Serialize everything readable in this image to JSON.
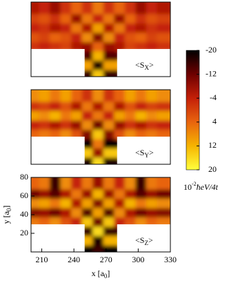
{
  "chart_data": [
    {
      "type": "heatmap",
      "label": [
        "<S",
        "X",
        ">"
      ],
      "xbins": [
        200,
        210,
        220,
        230,
        240,
        250,
        260,
        270,
        280,
        290,
        300,
        310,
        320,
        330
      ],
      "ybins": [
        0,
        10,
        20,
        30,
        40,
        50,
        60,
        70,
        80
      ],
      "z": [
        [
          null,
          null,
          null,
          null,
          null,
          -16,
          14,
          -16,
          null,
          null,
          null,
          null,
          null
        ],
        [
          null,
          null,
          null,
          null,
          null,
          10,
          -18,
          10,
          null,
          null,
          null,
          null,
          null
        ],
        [
          null,
          null,
          null,
          null,
          null,
          -14,
          12,
          -14,
          null,
          null,
          null,
          null,
          null
        ],
        [
          -2,
          -4,
          -2,
          0,
          -6,
          -8,
          4,
          -8,
          -6,
          0,
          -2,
          -4,
          -2
        ],
        [
          2,
          0,
          4,
          2,
          -4,
          8,
          -10,
          8,
          -4,
          2,
          4,
          0,
          2
        ],
        [
          -4,
          -2,
          -6,
          -4,
          6,
          -6,
          10,
          -6,
          6,
          -4,
          -6,
          -2,
          -4
        ],
        [
          0,
          2,
          -2,
          4,
          -8,
          6,
          -4,
          6,
          -8,
          4,
          -2,
          2,
          0
        ],
        [
          -6,
          -4,
          -8,
          -2,
          4,
          -2,
          6,
          -2,
          4,
          -2,
          -8,
          -4,
          -6
        ]
      ]
    },
    {
      "type": "heatmap",
      "label": [
        "<S",
        "Y",
        ">"
      ],
      "xbins": [
        200,
        210,
        220,
        230,
        240,
        250,
        260,
        270,
        280,
        290,
        300,
        310,
        320,
        330
      ],
      "ybins": [
        0,
        10,
        20,
        30,
        40,
        50,
        60,
        70,
        80
      ],
      "z": [
        [
          null,
          null,
          null,
          null,
          null,
          -18,
          16,
          -18,
          null,
          null,
          null,
          null,
          null
        ],
        [
          null,
          null,
          null,
          null,
          null,
          14,
          -8,
          14,
          null,
          null,
          null,
          null,
          null
        ],
        [
          null,
          null,
          null,
          null,
          null,
          -20,
          6,
          -20,
          null,
          null,
          null,
          null,
          null
        ],
        [
          4,
          6,
          4,
          8,
          2,
          -10,
          14,
          -10,
          2,
          8,
          4,
          6,
          4
        ],
        [
          -4,
          -2,
          -6,
          -2,
          -8,
          8,
          -12,
          8,
          -8,
          -2,
          -6,
          -2,
          -4
        ],
        [
          10,
          8,
          12,
          6,
          10,
          -4,
          6,
          -4,
          10,
          6,
          12,
          8,
          10
        ],
        [
          -2,
          0,
          -4,
          2,
          -6,
          6,
          -6,
          6,
          -6,
          2,
          -4,
          0,
          -2
        ],
        [
          8,
          10,
          6,
          10,
          4,
          -2,
          8,
          -2,
          4,
          10,
          6,
          10,
          8
        ]
      ]
    },
    {
      "type": "heatmap",
      "label": [
        "<S",
        "Z",
        ">"
      ],
      "xbins": [
        200,
        210,
        220,
        230,
        240,
        250,
        260,
        270,
        280,
        290,
        300,
        310,
        320,
        330
      ],
      "ybins": [
        0,
        10,
        20,
        30,
        40,
        50,
        60,
        70,
        80
      ],
      "z": [
        [
          null,
          null,
          null,
          null,
          null,
          -20,
          -16,
          -20,
          null,
          null,
          null,
          null,
          null
        ],
        [
          null,
          null,
          null,
          null,
          null,
          12,
          -18,
          12,
          null,
          null,
          null,
          null,
          null
        ],
        [
          null,
          null,
          null,
          null,
          null,
          -16,
          16,
          -16,
          null,
          null,
          null,
          null,
          null
        ],
        [
          6,
          4,
          8,
          2,
          -4,
          14,
          -12,
          14,
          -4,
          2,
          8,
          4,
          6
        ],
        [
          -10,
          -8,
          -12,
          -6,
          8,
          -14,
          10,
          -14,
          8,
          -6,
          -12,
          -8,
          -10
        ],
        [
          8,
          10,
          6,
          12,
          -6,
          10,
          -10,
          10,
          -6,
          12,
          6,
          10,
          8
        ],
        [
          -12,
          -8,
          -14,
          -6,
          6,
          -8,
          12,
          -8,
          6,
          -6,
          -14,
          -8,
          -12
        ],
        [
          4,
          6,
          -16,
          8,
          -4,
          6,
          -8,
          6,
          -4,
          8,
          -16,
          6,
          4
        ]
      ],
      "xlim": [
        200,
        330
      ],
      "xticks": [
        210,
        240,
        270,
        300,
        330
      ],
      "ylim": [
        0,
        80
      ],
      "yticks": [
        20,
        40,
        60,
        80
      ],
      "xlabel": [
        "x [a",
        "0",
        "]"
      ],
      "ylabel": [
        "y [a",
        "0",
        "]"
      ]
    }
  ],
  "colorbar": {
    "lim": [
      -20,
      20
    ],
    "ticks": [
      -20,
      -12,
      -4,
      4,
      12,
      20
    ],
    "colors": [
      "#000000",
      "#6e0000",
      "#c42008",
      "#e8640e",
      "#f6b400",
      "#ffff3c"
    ],
    "unit": [
      "10",
      "-2",
      "ħeV/4t"
    ]
  }
}
